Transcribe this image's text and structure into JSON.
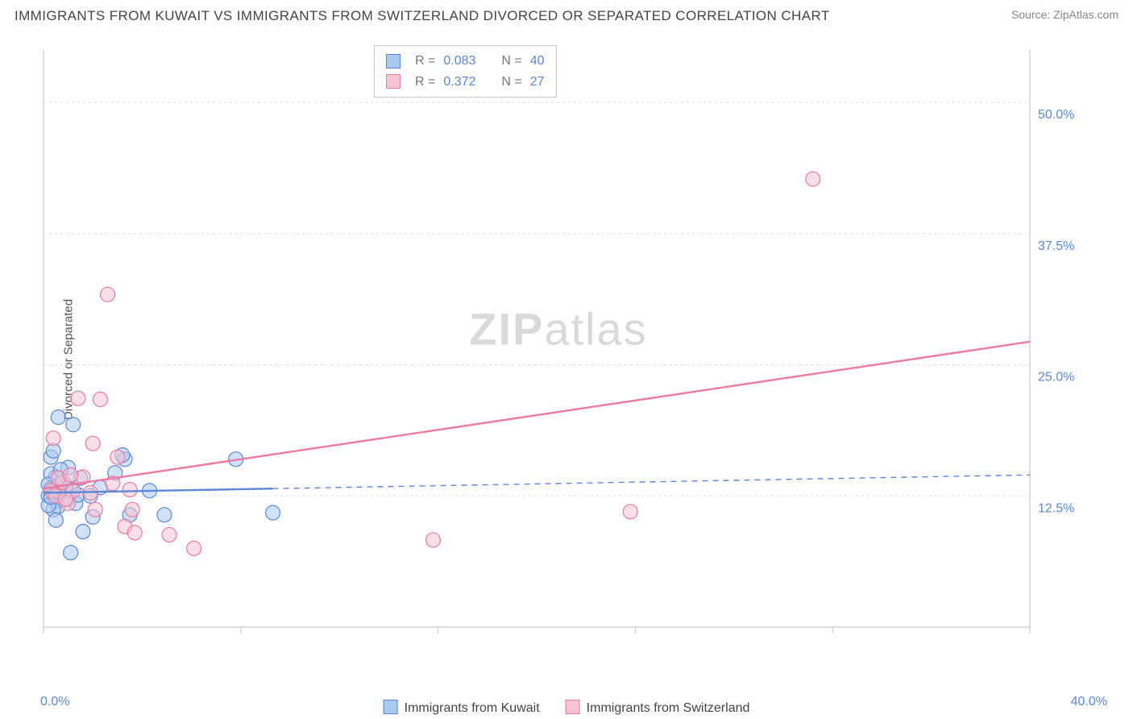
{
  "title": "IMMIGRANTS FROM KUWAIT VS IMMIGRANTS FROM SWITZERLAND DIVORCED OR SEPARATED CORRELATION CHART",
  "source": "Source: ZipAtlas.com",
  "y_axis_label": "Divorced or Separated",
  "watermark_a": "ZIP",
  "watermark_b": "atlas",
  "chart": {
    "type": "scatter",
    "xlim": [
      0,
      40
    ],
    "ylim": [
      0,
      55
    ],
    "x_tick_step": 8,
    "y_ticks": [
      12.5,
      25.0,
      37.5,
      50.0
    ],
    "x_label_min": "0.0%",
    "x_label_max": "40.0%",
    "y_labels": [
      "12.5%",
      "25.0%",
      "37.5%",
      "50.0%"
    ],
    "background_color": "#ffffff",
    "grid_color": "#dddddd",
    "axis_color": "#c9c9c9",
    "tick_label_color": "#5b88d6",
    "marker_radius": 9,
    "marker_opacity": 0.55,
    "series": [
      {
        "name": "Immigrants from Kuwait",
        "color": "#6ea3e6",
        "fill": "#a9c9f2",
        "stroke": "#5b88d6",
        "trend": {
          "y0": 12.8,
          "y1": 14.5,
          "solid_until_x": 9.3,
          "width_solid": 2.4,
          "width_dash": 1.4
        },
        "stats": {
          "R": "0.083",
          "N": "40"
        },
        "points": [
          [
            0.2,
            12.5
          ],
          [
            0.3,
            13.2
          ],
          [
            0.4,
            13.0
          ],
          [
            0.5,
            12.0
          ],
          [
            0.6,
            11.5
          ],
          [
            0.7,
            13.8
          ],
          [
            0.8,
            12.8
          ],
          [
            0.3,
            16.2
          ],
          [
            0.5,
            14.3
          ],
          [
            1.0,
            12.2
          ],
          [
            1.1,
            13.1
          ],
          [
            1.3,
            11.8
          ],
          [
            1.4,
            12.6
          ],
          [
            1.6,
            9.1
          ],
          [
            1.2,
            19.3
          ],
          [
            1.0,
            15.2
          ],
          [
            0.6,
            20.0
          ],
          [
            0.4,
            16.8
          ],
          [
            1.9,
            12.5
          ],
          [
            2.0,
            10.5
          ],
          [
            2.3,
            13.3
          ],
          [
            2.9,
            14.7
          ],
          [
            3.3,
            16.0
          ],
          [
            3.2,
            16.4
          ],
          [
            3.5,
            10.7
          ],
          [
            4.3,
            13.0
          ],
          [
            4.9,
            10.7
          ],
          [
            1.1,
            7.1
          ],
          [
            0.9,
            13.5
          ],
          [
            1.5,
            14.2
          ],
          [
            0.3,
            14.6
          ],
          [
            0.2,
            13.6
          ],
          [
            0.4,
            11.2
          ],
          [
            0.5,
            10.2
          ],
          [
            0.7,
            15.0
          ],
          [
            7.8,
            16.0
          ],
          [
            9.3,
            10.9
          ],
          [
            0.2,
            11.6
          ],
          [
            0.3,
            12.4
          ],
          [
            0.6,
            12.9
          ]
        ]
      },
      {
        "name": "Immigrants from Switzerland",
        "color": "#f29bb3",
        "fill": "#f8c4d2",
        "stroke": "#eb7ba0",
        "trend": {
          "y0": 13.2,
          "y1": 27.2,
          "solid_until_x": 40,
          "width_solid": 2.4,
          "width_dash": 1.4
        },
        "stats": {
          "R": "0.372",
          "N": "27"
        },
        "points": [
          [
            0.3,
            13.0
          ],
          [
            0.5,
            12.5
          ],
          [
            0.8,
            13.8
          ],
          [
            1.0,
            11.8
          ],
          [
            1.2,
            13.0
          ],
          [
            1.4,
            21.8
          ],
          [
            1.9,
            12.8
          ],
          [
            2.0,
            17.5
          ],
          [
            2.3,
            21.7
          ],
          [
            2.8,
            13.7
          ],
          [
            2.1,
            11.2
          ],
          [
            2.6,
            31.7
          ],
          [
            3.3,
            9.6
          ],
          [
            3.5,
            13.1
          ],
          [
            3.0,
            16.2
          ],
          [
            3.6,
            11.2
          ],
          [
            3.7,
            9.0
          ],
          [
            5.1,
            8.8
          ],
          [
            6.1,
            7.5
          ],
          [
            0.6,
            14.2
          ],
          [
            0.4,
            18.0
          ],
          [
            1.6,
            14.3
          ],
          [
            1.1,
            14.5
          ],
          [
            15.8,
            8.3
          ],
          [
            23.8,
            11.0
          ],
          [
            31.2,
            42.7
          ],
          [
            0.9,
            12.2
          ]
        ]
      }
    ]
  },
  "legend": {
    "s1": "Immigrants from Kuwait",
    "s2": "Immigrants from Switzerland"
  },
  "stat_labels": {
    "R": "R =",
    "N": "N ="
  }
}
